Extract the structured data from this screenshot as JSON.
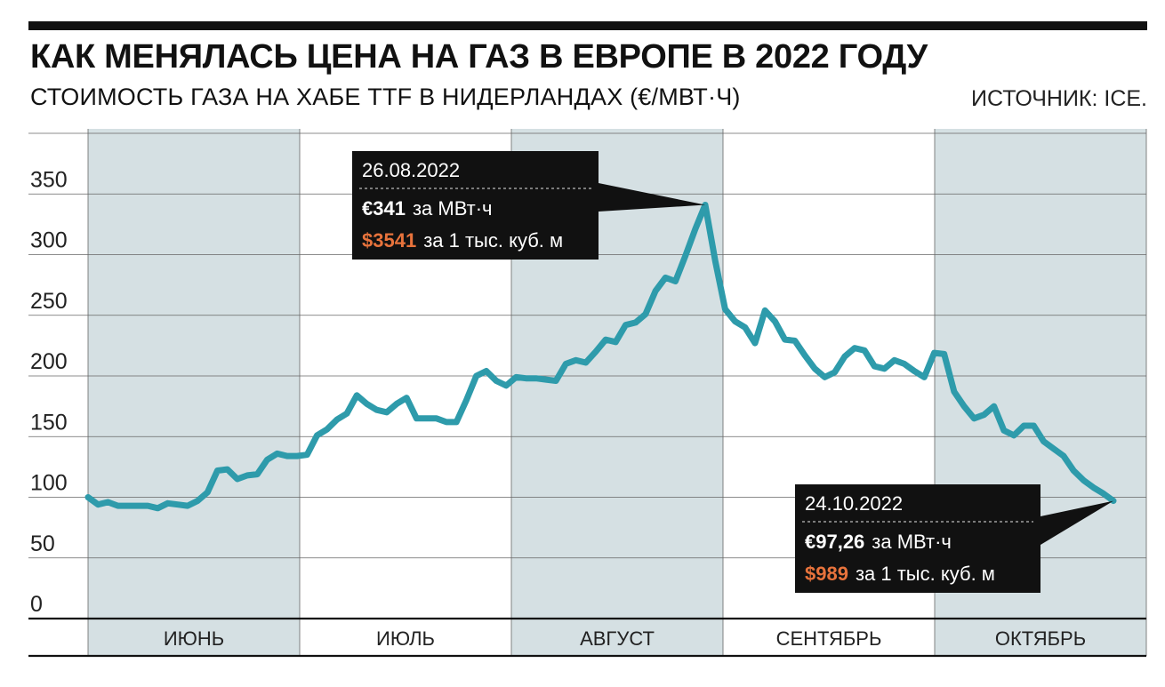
{
  "header": {
    "title": "КАК МЕНЯЛАСЬ ЦЕНА НА ГАЗ В ЕВРОПЕ В 2022 ГОДУ",
    "subtitle": "СТОИМОСТЬ ГАЗА НА ХАБЕ TTF В НИДЕРЛАНДАХ (€/МВТ·Ч)",
    "source": "ИСТОЧНИК: ICE."
  },
  "colors": {
    "line": "#2e9bab",
    "shade": "#d5e0e3",
    "callout_bg": "#111111",
    "accent_orange": "#e8733c"
  },
  "chart_data": {
    "type": "line",
    "title": "КАК МЕНЯЛАСЬ ЦЕНА НА ГАЗ В ЕВРОПЕ В 2022 ГОДУ",
    "ylabel": "СТОИМОСТЬ ГАЗА НА ХАБЕ TTF В НИДЕРЛАНДАХ (€/МВТ·Ч)",
    "xlabel": "",
    "ylim": [
      0,
      400
    ],
    "yticks": [
      0,
      50,
      100,
      150,
      200,
      250,
      300,
      350
    ],
    "grid": true,
    "months": [
      "ИЮНЬ",
      "ИЮЛЬ",
      "АВГУСТ",
      "СЕНТЯБРЬ",
      "ОКТЯБРЬ"
    ],
    "month_shading": [
      true,
      false,
      true,
      false,
      true
    ],
    "series": [
      {
        "name": "",
        "x": [
          "2022-06-01",
          "2022-06-02",
          "2022-06-03",
          "2022-06-06",
          "2022-06-07",
          "2022-06-08",
          "2022-06-09",
          "2022-06-10",
          "2022-06-13",
          "2022-06-14",
          "2022-06-15",
          "2022-06-16",
          "2022-06-17",
          "2022-06-20",
          "2022-06-21",
          "2022-06-22",
          "2022-06-23",
          "2022-06-24",
          "2022-06-27",
          "2022-06-28",
          "2022-06-29",
          "2022-06-30",
          "2022-07-01",
          "2022-07-04",
          "2022-07-05",
          "2022-07-06",
          "2022-07-07",
          "2022-07-08",
          "2022-07-11",
          "2022-07-12",
          "2022-07-13",
          "2022-07-14",
          "2022-07-15",
          "2022-07-18",
          "2022-07-19",
          "2022-07-20",
          "2022-07-21",
          "2022-07-22",
          "2022-07-25",
          "2022-07-26",
          "2022-07-27",
          "2022-07-28",
          "2022-07-29",
          "2022-08-01",
          "2022-08-02",
          "2022-08-03",
          "2022-08-04",
          "2022-08-05",
          "2022-08-08",
          "2022-08-09",
          "2022-08-10",
          "2022-08-11",
          "2022-08-12",
          "2022-08-15",
          "2022-08-16",
          "2022-08-17",
          "2022-08-18",
          "2022-08-19",
          "2022-08-22",
          "2022-08-23",
          "2022-08-24",
          "2022-08-25",
          "2022-08-26",
          "2022-08-29",
          "2022-08-30",
          "2022-08-31",
          "2022-09-01",
          "2022-09-02",
          "2022-09-05",
          "2022-09-06",
          "2022-09-07",
          "2022-09-08",
          "2022-09-09",
          "2022-09-12",
          "2022-09-13",
          "2022-09-14",
          "2022-09-15",
          "2022-09-16",
          "2022-09-19",
          "2022-09-20",
          "2022-09-21",
          "2022-09-22",
          "2022-09-23",
          "2022-09-26",
          "2022-09-27",
          "2022-09-28",
          "2022-09-29",
          "2022-09-30",
          "2022-10-03",
          "2022-10-04",
          "2022-10-05",
          "2022-10-06",
          "2022-10-07",
          "2022-10-10",
          "2022-10-11",
          "2022-10-12",
          "2022-10-13",
          "2022-10-14",
          "2022-10-17",
          "2022-10-18",
          "2022-10-19",
          "2022-10-20",
          "2022-10-21",
          "2022-10-24"
        ],
        "values": [
          100,
          94,
          96,
          93,
          93,
          93,
          93,
          91,
          95,
          94,
          93,
          97,
          104,
          122,
          123,
          115,
          118,
          119,
          131,
          136,
          134,
          134,
          135,
          151,
          156,
          164,
          169,
          184,
          177,
          172,
          170,
          177,
          182,
          165,
          165,
          165,
          162,
          162,
          180,
          200,
          204,
          196,
          192,
          199,
          198,
          198,
          197,
          196,
          210,
          213,
          211,
          220,
          230,
          228,
          242,
          244,
          251,
          270,
          281,
          278,
          299,
          321,
          341,
          295,
          255,
          245,
          240,
          227,
          254,
          245,
          230,
          229,
          217,
          206,
          199,
          203,
          216,
          223,
          221,
          208,
          206,
          213,
          210,
          204,
          199,
          219,
          218,
          187,
          175,
          165,
          168,
          175,
          155,
          151,
          159,
          159,
          146,
          140,
          134,
          122,
          114,
          108,
          103,
          97
        ]
      }
    ],
    "annotations": [
      {
        "date": "26.08.2022",
        "price_eur_value": "€341",
        "price_eur_unit": "за МВт·ч",
        "price_usd_value": "$3541",
        "price_usd_unit": "за 1 тыс. куб. м",
        "point_index": 62
      },
      {
        "date": "24.10.2022",
        "price_eur_value": "€97,26",
        "price_eur_unit": "за МВт·ч",
        "price_usd_value": "$989",
        "price_usd_unit": "за 1 тыс. куб. м",
        "point_index": 103
      }
    ]
  }
}
